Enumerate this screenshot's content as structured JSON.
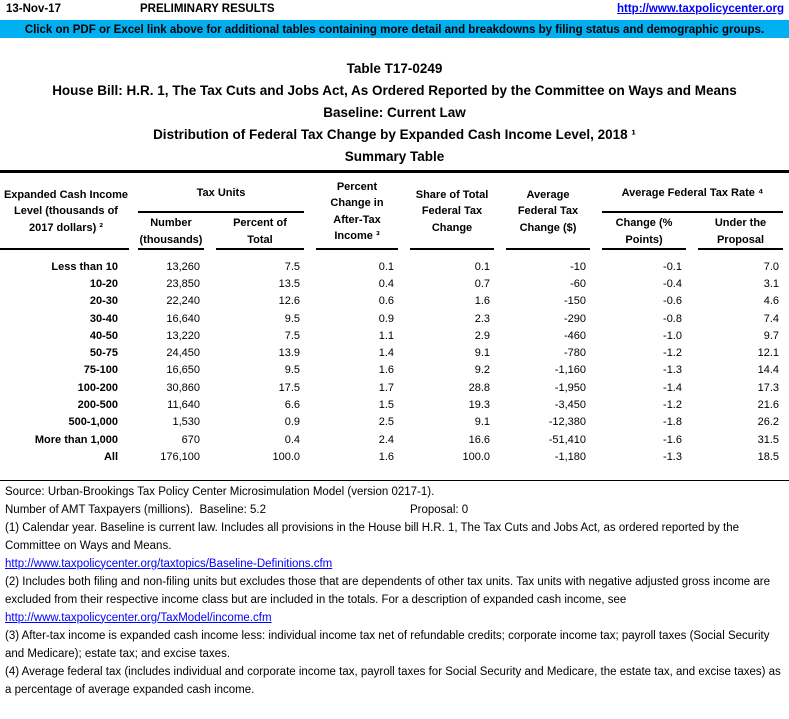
{
  "page": {
    "date": "13-Nov-17",
    "preliminary": "PRELIMINARY RESULTS",
    "site_url": "http://www.taxpolicycenter.org",
    "banner_text": "Click on PDF or Excel link above for additional tables containing more detail and breakdowns by filing status and demographic groups.",
    "banner_color": "#00B0F0",
    "link_color": "#0000FF"
  },
  "titles": {
    "line1": "Table T17-0249",
    "line2": "House Bill: H.R. 1, The Tax Cuts and Jobs Act, As Ordered Reported by the Committee on Ways and Means",
    "line3": "Baseline: Current Law",
    "line4": "Distribution of Federal Tax Change by Expanded Cash Income Level, 2018 ¹",
    "line5": "Summary Table"
  },
  "table": {
    "headers": {
      "income_level": "Expanded Cash Income\nLevel (thousands of\n2017 dollars) ²",
      "tax_units_group": "Tax Units",
      "number_thousands": "Number\n(thousands)",
      "percent_of_total": "Percent of\nTotal",
      "pct_change_after_tax": "Percent\nChange in\nAfter-Tax\nIncome ³",
      "share_total_change": "Share of Total\nFederal Tax\nChange",
      "avg_tax_change": "Average\nFederal Tax\nChange ($)",
      "avg_rate_group": "Average Federal Tax Rate ⁴",
      "rate_change_points": "Change (%\nPoints)",
      "rate_under_proposal": "Under the\nProposal"
    },
    "rows": [
      {
        "label": "Less than 10",
        "values": [
          "13,260",
          "7.5",
          "0.1",
          "0.1",
          "-10",
          "-0.1",
          "7.0"
        ]
      },
      {
        "label": "10-20",
        "values": [
          "23,850",
          "13.5",
          "0.4",
          "0.7",
          "-60",
          "-0.4",
          "3.1"
        ]
      },
      {
        "label": "20-30",
        "values": [
          "22,240",
          "12.6",
          "0.6",
          "1.6",
          "-150",
          "-0.6",
          "4.6"
        ]
      },
      {
        "label": "30-40",
        "values": [
          "16,640",
          "9.5",
          "0.9",
          "2.3",
          "-290",
          "-0.8",
          "7.4"
        ]
      },
      {
        "label": "40-50",
        "values": [
          "13,220",
          "7.5",
          "1.1",
          "2.9",
          "-460",
          "-1.0",
          "9.7"
        ]
      },
      {
        "label": "50-75",
        "values": [
          "24,450",
          "13.9",
          "1.4",
          "9.1",
          "-780",
          "-1.2",
          "12.1"
        ]
      },
      {
        "label": "75-100",
        "values": [
          "16,650",
          "9.5",
          "1.6",
          "9.2",
          "-1,160",
          "-1.3",
          "14.4"
        ]
      },
      {
        "label": "100-200",
        "values": [
          "30,860",
          "17.5",
          "1.7",
          "28.8",
          "-1,950",
          "-1.4",
          "17.3"
        ]
      },
      {
        "label": "200-500",
        "values": [
          "11,640",
          "6.6",
          "1.5",
          "19.3",
          "-3,450",
          "-1.2",
          "21.6"
        ]
      },
      {
        "label": "500-1,000",
        "values": [
          "1,530",
          "0.9",
          "2.5",
          "9.1",
          "-12,380",
          "-1.8",
          "26.2"
        ]
      },
      {
        "label": "More than 1,000",
        "values": [
          "670",
          "0.4",
          "2.4",
          "16.6",
          "-51,410",
          "-1.6",
          "31.5"
        ]
      },
      {
        "label": "All",
        "values": [
          "176,100",
          "100.0",
          "1.6",
          "100.0",
          "-1,180",
          "-1.3",
          "18.5"
        ]
      }
    ]
  },
  "footer": {
    "source": "Source: Urban-Brookings Tax Policy Center Microsimulation Model (version 0217-1).",
    "amt_label": "Number of AMT Taxpayers (millions).  Baseline: 5.2",
    "amt_proposal": "Proposal: 0",
    "note1": "(1) Calendar year. Baseline is current law. Includes all provisions in the House bill H.R. 1, The Tax Cuts and Jobs Act, as ordered reported by the Committee on Ways and Means.",
    "link1": "http://www.taxpolicycenter.org/taxtopics/Baseline-Definitions.cfm",
    "note2": "(2) Includes both filing and non-filing units but excludes those that are dependents of other tax units. Tax units with negative adjusted gross income are excluded from their respective income class but are included in the totals. For a description of expanded cash income, see",
    "link2": "http://www.taxpolicycenter.org/TaxModel/income.cfm",
    "note3": "(3) After-tax income is expanded cash income less: individual income tax net of refundable credits; corporate income tax; payroll taxes (Social Security and Medicare); estate tax; and excise taxes.",
    "note4": "(4) Average federal tax (includes individual and corporate income tax, payroll taxes for Social Security and Medicare, the estate tax, and excise taxes) as a percentage of average expanded cash income."
  }
}
